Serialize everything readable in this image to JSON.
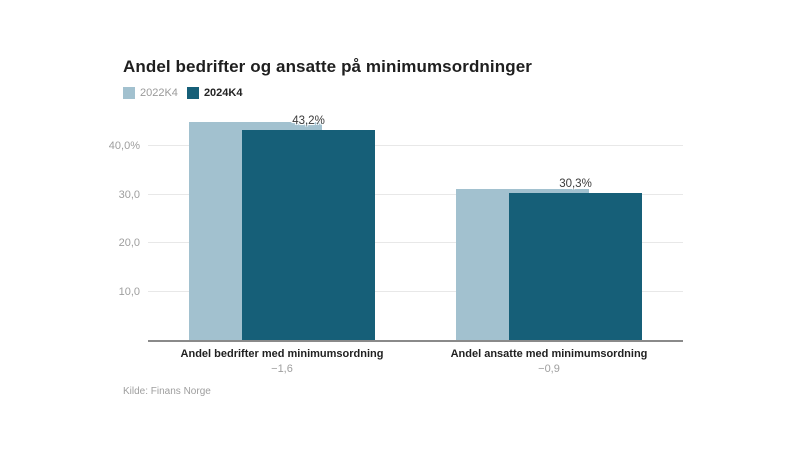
{
  "chart_data": {
    "type": "bar",
    "title": "Andel bedrifter og ansatte på minimumsordninger",
    "source": "Kilde: Finans Norge",
    "legend_position": "top-left",
    "grid": true,
    "colors": {
      "series_2022": "#a2c1cf",
      "series_2024": "#165f78"
    },
    "legend": [
      {
        "label": "2022K4",
        "color": "#a2c1cf"
      },
      {
        "label": "2024K4",
        "color": "#165f78"
      }
    ],
    "categories": [
      {
        "label": "Andel bedrifter med minimumsordning",
        "sublabel": "−1,6"
      },
      {
        "label": "Andel ansatte med minimumsordning",
        "sublabel": "−0,9"
      }
    ],
    "series": [
      {
        "name": "2022K4",
        "color": "#a2c1cf",
        "values": [
          44.8,
          31.2
        ],
        "data_labels": [
          "",
          ""
        ]
      },
      {
        "name": "2024K4",
        "color": "#165f78",
        "values": [
          43.2,
          30.3
        ],
        "data_labels": [
          "43,2%",
          "30,3%"
        ]
      }
    ],
    "y_axis": {
      "ylim": [
        0,
        50
      ],
      "ticks": [
        {
          "value": 10,
          "label": "10,0"
        },
        {
          "value": 20,
          "label": "20,0"
        },
        {
          "value": 30,
          "label": "30,0"
        },
        {
          "value": 40,
          "label": "40,0%"
        }
      ]
    }
  }
}
